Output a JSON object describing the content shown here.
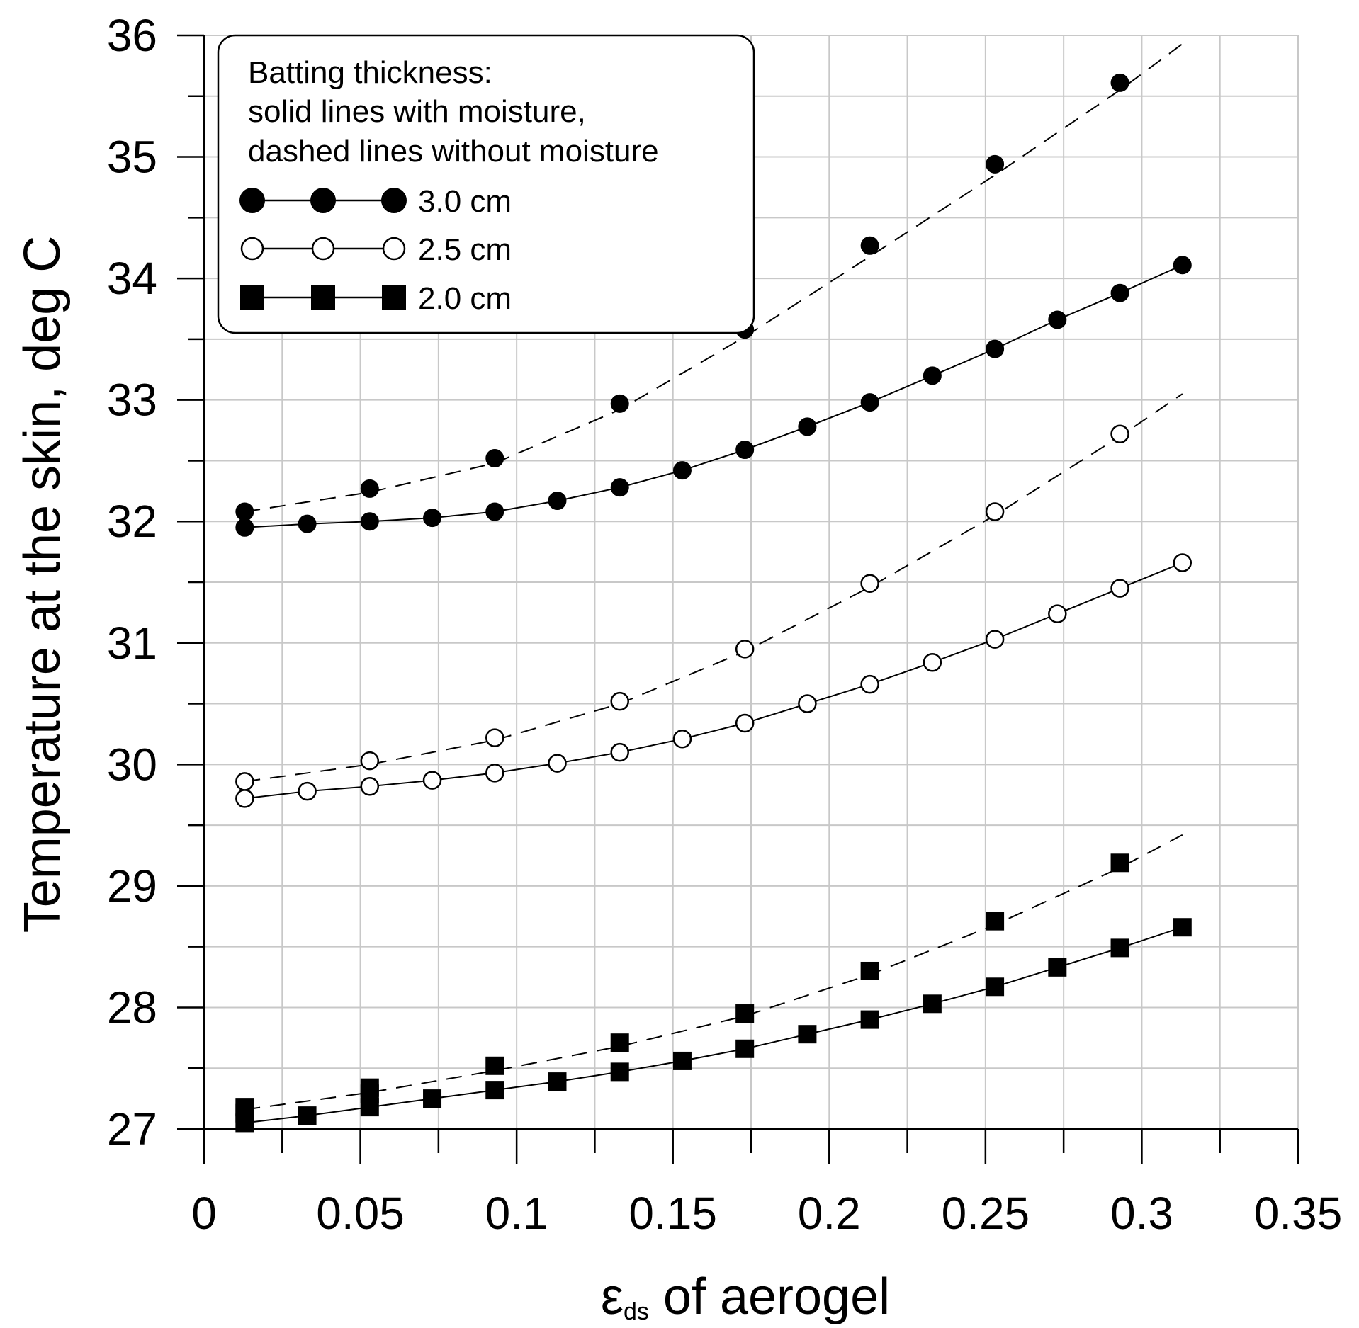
{
  "chart_data": {
    "type": "line",
    "title": "",
    "xlabel_symbol": "ε",
    "xlabel_subscript": "ds",
    "xlabel_rest": " of aerogel",
    "ylabel": "Temperature  at the skin, deg C",
    "xlim": [
      0,
      0.35
    ],
    "ylim": [
      27,
      36
    ],
    "xticks": [
      0,
      0.05,
      0.1,
      0.15,
      0.2,
      0.25,
      0.3,
      0.35
    ],
    "xtick_labels": [
      "0",
      "0.05",
      "0.1",
      "0.15",
      "0.2",
      "0.25",
      "0.3",
      "0.35"
    ],
    "yticks": [
      27,
      28,
      29,
      30,
      31,
      32,
      33,
      34,
      35,
      36
    ],
    "ytick_labels": [
      "27",
      "28",
      "29",
      "30",
      "31",
      "32",
      "33",
      "34",
      "35",
      "36"
    ],
    "grid": true,
    "legend": {
      "position": "top-left",
      "heading_lines": [
        "Batting thickness:",
        "solid lines with moisture,",
        "dashed lines without moisture"
      ],
      "entries": [
        {
          "label": "3.0 cm",
          "marker": "filled-circle"
        },
        {
          "label": "2.5 cm",
          "marker": "open-circle"
        },
        {
          "label": "2.0 cm",
          "marker": "filled-square"
        }
      ]
    },
    "series": [
      {
        "name": "3.0 cm with moisture",
        "marker": "filled-circle",
        "line": "solid",
        "show_points": true,
        "x": [
          0.013,
          0.033,
          0.053,
          0.073,
          0.093,
          0.113,
          0.133,
          0.153,
          0.173,
          0.193,
          0.213,
          0.233,
          0.253,
          0.273,
          0.293,
          0.313
        ],
        "y": [
          31.95,
          31.98,
          32.0,
          32.03,
          32.08,
          32.17,
          32.28,
          32.42,
          32.59,
          32.78,
          32.98,
          33.2,
          33.42,
          33.66,
          33.88,
          34.11
        ]
      },
      {
        "name": "3.0 cm without moisture (points)",
        "marker": "filled-circle",
        "line": "none",
        "show_points": true,
        "x": [
          0.013,
          0.053,
          0.093,
          0.133,
          0.173,
          0.213,
          0.253,
          0.293
        ],
        "y": [
          32.08,
          32.27,
          32.52,
          32.97,
          33.58,
          34.27,
          34.94,
          35.61
        ]
      },
      {
        "name": "3.0 cm without moisture (fit)",
        "marker": "none",
        "line": "dashed",
        "show_points": false,
        "x": [
          0.013,
          0.053,
          0.093,
          0.133,
          0.173,
          0.213,
          0.253,
          0.293,
          0.313
        ],
        "y": [
          32.08,
          32.24,
          32.48,
          32.92,
          33.52,
          34.18,
          34.85,
          35.55,
          35.93
        ]
      },
      {
        "name": "2.5 cm with moisture",
        "marker": "open-circle",
        "line": "solid",
        "show_points": true,
        "x": [
          0.013,
          0.033,
          0.053,
          0.073,
          0.093,
          0.113,
          0.133,
          0.153,
          0.173,
          0.193,
          0.213,
          0.233,
          0.253,
          0.273,
          0.293,
          0.313
        ],
        "y": [
          29.72,
          29.78,
          29.82,
          29.87,
          29.93,
          30.01,
          30.1,
          30.21,
          30.34,
          30.5,
          30.66,
          30.84,
          31.03,
          31.24,
          31.45,
          31.66
        ]
      },
      {
        "name": "2.5 cm without moisture (points)",
        "marker": "open-circle",
        "line": "none",
        "show_points": true,
        "x": [
          0.013,
          0.053,
          0.093,
          0.133,
          0.173,
          0.213,
          0.253,
          0.293
        ],
        "y": [
          29.86,
          30.03,
          30.22,
          30.52,
          30.95,
          31.49,
          32.08,
          32.72
        ]
      },
      {
        "name": "2.5 cm without moisture (fit)",
        "marker": "none",
        "line": "dashed",
        "show_points": false,
        "x": [
          0.013,
          0.053,
          0.093,
          0.133,
          0.173,
          0.213,
          0.253,
          0.293,
          0.313
        ],
        "y": [
          29.86,
          30.0,
          30.2,
          30.5,
          30.93,
          31.46,
          32.05,
          32.7,
          33.05
        ]
      },
      {
        "name": "2.0 cm with moisture",
        "marker": "filled-square",
        "line": "solid",
        "show_points": true,
        "x": [
          0.013,
          0.033,
          0.053,
          0.073,
          0.093,
          0.113,
          0.133,
          0.153,
          0.173,
          0.193,
          0.213,
          0.233,
          0.253,
          0.273,
          0.293,
          0.313
        ],
        "y": [
          27.05,
          27.11,
          27.18,
          27.25,
          27.32,
          27.39,
          27.47,
          27.56,
          27.66,
          27.78,
          27.9,
          28.03,
          28.17,
          28.33,
          28.49,
          28.66
        ]
      },
      {
        "name": "2.0 cm without moisture (points)",
        "marker": "filled-square",
        "line": "none",
        "show_points": true,
        "x": [
          0.013,
          0.013,
          0.053,
          0.053,
          0.093,
          0.133,
          0.173,
          0.213,
          0.253,
          0.293
        ],
        "y": [
          27.13,
          27.18,
          27.29,
          27.34,
          27.52,
          27.71,
          27.95,
          28.3,
          28.71,
          29.19
        ]
      },
      {
        "name": "2.0 cm without moisture (fit)",
        "marker": "none",
        "line": "dashed",
        "show_points": false,
        "x": [
          0.013,
          0.053,
          0.093,
          0.133,
          0.173,
          0.213,
          0.253,
          0.293,
          0.313
        ],
        "y": [
          27.16,
          27.3,
          27.48,
          27.68,
          27.93,
          28.27,
          28.68,
          29.15,
          29.42
        ]
      }
    ]
  }
}
